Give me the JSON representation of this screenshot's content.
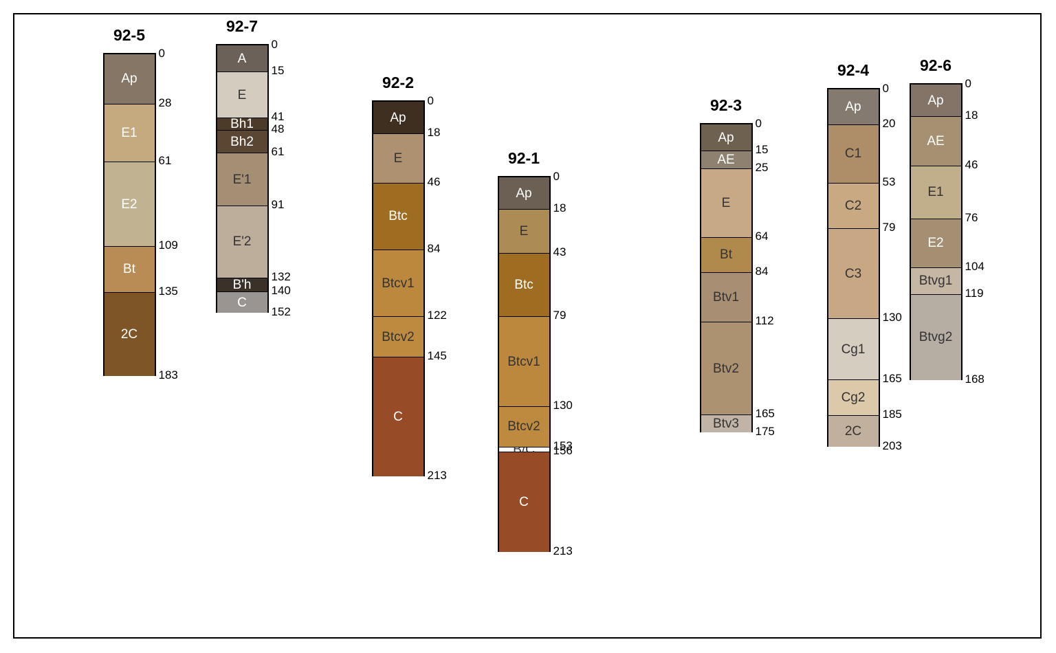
{
  "profiles": [
    {
      "name": "92-5",
      "horizons": [
        {
          "label": "Ap",
          "top": 0,
          "bottom": 28,
          "color": "#857665",
          "text": "#ffffff"
        },
        {
          "label": "E1",
          "top": 28,
          "bottom": 61,
          "color": "#c6aa7f",
          "text": "#ffffff"
        },
        {
          "label": "E2",
          "top": 61,
          "bottom": 109,
          "color": "#c1b292",
          "text": "#ffffff"
        },
        {
          "label": "Bt",
          "top": 109,
          "bottom": 135,
          "color": "#b88c54",
          "text": "#ffffff"
        },
        {
          "label": "2C",
          "top": 135,
          "bottom": 183,
          "color": "#7e5526",
          "text": "#ffffff"
        }
      ],
      "depths": [
        "0",
        "28",
        "61",
        "109",
        "135",
        "183"
      ]
    },
    {
      "name": "92-7",
      "horizons": [
        {
          "label": "A",
          "top": 0,
          "bottom": 15,
          "color": "#6b6158",
          "text": "#ffffff"
        },
        {
          "label": "E",
          "top": 15,
          "bottom": 41,
          "color": "#d4ccbf",
          "text": "#333333"
        },
        {
          "label": "Bh1",
          "top": 41,
          "bottom": 48,
          "color": "#4d3b2a",
          "text": "#ffffff"
        },
        {
          "label": "Bh2",
          "top": 48,
          "bottom": 61,
          "color": "#5a4633",
          "text": "#ffffff"
        },
        {
          "label": "E'1",
          "top": 61,
          "bottom": 91,
          "color": "#a48f75",
          "text": "#333333"
        },
        {
          "label": "E'2",
          "top": 91,
          "bottom": 132,
          "color": "#bcae9b",
          "text": "#333333"
        },
        {
          "label": "B'h",
          "top": 132,
          "bottom": 140,
          "color": "#3a3128",
          "text": "#ffffff"
        },
        {
          "label": "C",
          "top": 140,
          "bottom": 152,
          "color": "#9b9591",
          "text": "#ffffff"
        }
      ],
      "depths": [
        "0",
        "15",
        "41",
        "48",
        "61",
        "91",
        "132",
        "140",
        "152"
      ]
    },
    {
      "name": "92-2",
      "horizons": [
        {
          "label": "Ap",
          "top": 0,
          "bottom": 18,
          "color": "#3e2f20",
          "text": "#ffffff"
        },
        {
          "label": "E",
          "top": 18,
          "bottom": 46,
          "color": "#ad9171",
          "text": "#333333"
        },
        {
          "label": "Btc",
          "top": 46,
          "bottom": 84,
          "color": "#9f6d22",
          "text": "#ffffff"
        },
        {
          "label": "Btcv1",
          "top": 84,
          "bottom": 122,
          "color": "#bb883e",
          "text": "#333333"
        },
        {
          "label": "Btcv2",
          "top": 122,
          "bottom": 145,
          "color": "#bd8a3f",
          "text": "#333333"
        },
        {
          "label": "C",
          "top": 145,
          "bottom": 213,
          "color": "#974b27",
          "text": "#ffffff"
        }
      ],
      "depths": [
        "0",
        "18",
        "46",
        "84",
        "122",
        "145",
        "213"
      ]
    },
    {
      "name": "92-1",
      "horizons": [
        {
          "label": "Ap",
          "top": 0,
          "bottom": 18,
          "color": "#6b6053",
          "text": "#ffffff"
        },
        {
          "label": "E",
          "top": 18,
          "bottom": 43,
          "color": "#ad8b54",
          "text": "#333333"
        },
        {
          "label": "Btc",
          "top": 43,
          "bottom": 79,
          "color": "#9f6d22",
          "text": "#ffffff"
        },
        {
          "label": "Btcv1",
          "top": 79,
          "bottom": 130,
          "color": "#bb883e",
          "text": "#333333"
        },
        {
          "label": "Btcv2",
          "top": 130,
          "bottom": 153,
          "color": "#bd8a3f",
          "text": "#333333"
        },
        {
          "label": "B/C",
          "top": 153,
          "bottom": 156,
          "color": "#ffffff",
          "text": "#333333"
        },
        {
          "label": "C",
          "top": 156,
          "bottom": 213,
          "color": "#974b27",
          "text": "#ffffff"
        }
      ],
      "depths": [
        "0",
        "18",
        "43",
        "79",
        "130",
        "153",
        "156",
        "213"
      ]
    },
    {
      "name": "92-3",
      "horizons": [
        {
          "label": "Ap",
          "top": 0,
          "bottom": 15,
          "color": "#6f6150",
          "text": "#ffffff"
        },
        {
          "label": "AE",
          "top": 15,
          "bottom": 25,
          "color": "#8f8170",
          "text": "#ffffff"
        },
        {
          "label": "E",
          "top": 25,
          "bottom": 64,
          "color": "#c7a985",
          "text": "#333333"
        },
        {
          "label": "Bt",
          "top": 64,
          "bottom": 84,
          "color": "#b08a4c",
          "text": "#333333"
        },
        {
          "label": "Btv1",
          "top": 84,
          "bottom": 112,
          "color": "#a88f74",
          "text": "#333333"
        },
        {
          "label": "Btv2",
          "top": 112,
          "bottom": 165,
          "color": "#ad9271",
          "text": "#333333"
        },
        {
          "label": "Btv3",
          "top": 165,
          "bottom": 175,
          "color": "#c1b4a6",
          "text": "#333333"
        }
      ],
      "depths": [
        "0",
        "15",
        "25",
        "64",
        "84",
        "112",
        "165",
        "175"
      ]
    },
    {
      "name": "92-4",
      "horizons": [
        {
          "label": "Ap",
          "top": 0,
          "bottom": 20,
          "color": "#857a70",
          "text": "#ffffff"
        },
        {
          "label": "C1",
          "top": 20,
          "bottom": 53,
          "color": "#ad8e68",
          "text": "#333333"
        },
        {
          "label": "C2",
          "top": 53,
          "bottom": 79,
          "color": "#c9a982",
          "text": "#333333"
        },
        {
          "label": "C3",
          "top": 79,
          "bottom": 130,
          "color": "#c8a884",
          "text": "#333333"
        },
        {
          "label": "Cg1",
          "top": 130,
          "bottom": 165,
          "color": "#d6cdc1",
          "text": "#333333"
        },
        {
          "label": "Cg2",
          "top": 165,
          "bottom": 185,
          "color": "#dbc9aa",
          "text": "#333333"
        },
        {
          "label": "2C",
          "top": 185,
          "bottom": 203,
          "color": "#c1b09d",
          "text": "#333333"
        }
      ],
      "depths": [
        "0",
        "20",
        "53",
        "79",
        "130",
        "165",
        "185",
        "203"
      ]
    },
    {
      "name": "92-6",
      "horizons": [
        {
          "label": "Ap",
          "top": 0,
          "bottom": 18,
          "color": "#837467",
          "text": "#ffffff"
        },
        {
          "label": "AE",
          "top": 18,
          "bottom": 46,
          "color": "#a59071",
          "text": "#ffffff"
        },
        {
          "label": "E1",
          "top": 46,
          "bottom": 76,
          "color": "#c1ae8a",
          "text": "#333333"
        },
        {
          "label": "E2",
          "top": 76,
          "bottom": 104,
          "color": "#a48f72",
          "text": "#ffffff"
        },
        {
          "label": "Btvg1",
          "top": 104,
          "bottom": 119,
          "color": "#c6b7a5",
          "text": "#333333"
        },
        {
          "label": "Btvg2",
          "top": 119,
          "bottom": 168,
          "color": "#b7aea3",
          "text": "#333333"
        }
      ],
      "depths": [
        "0",
        "18",
        "46",
        "76",
        "104",
        "119",
        "168"
      ]
    }
  ]
}
